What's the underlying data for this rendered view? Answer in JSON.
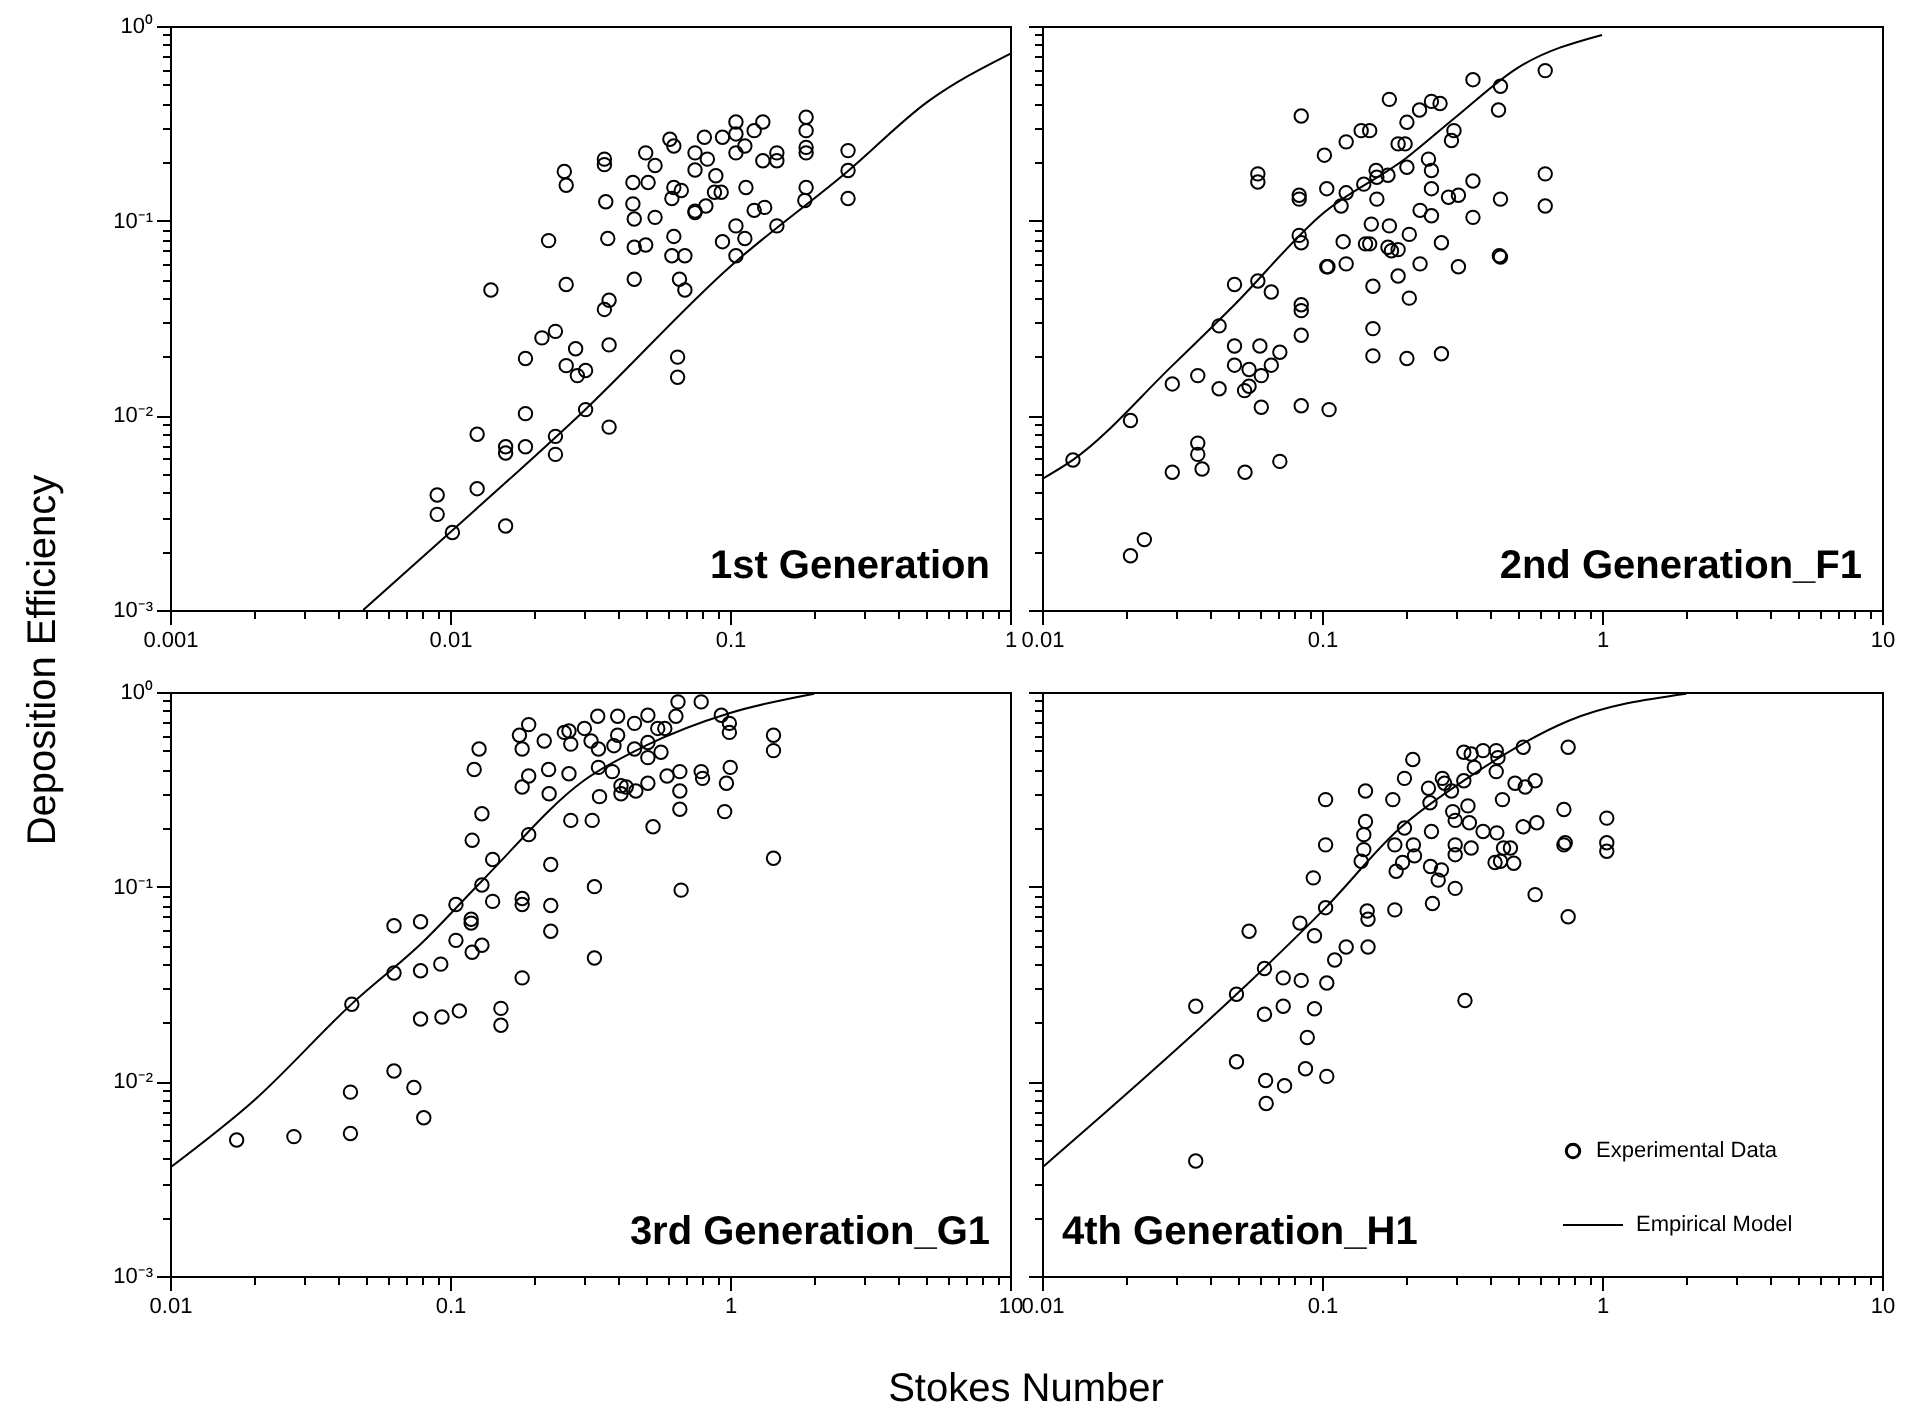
{
  "chart_data": [
    {
      "type": "scatter",
      "log": "xy",
      "xlim": [
        0.001,
        1
      ],
      "ylim": [
        0.001,
        1
      ],
      "ylabel": "Deposition Efficiency",
      "xticks": [
        0.001,
        {
          "value": 0.002,
          "label": null
        },
        {
          "value": 0.003,
          "label": null
        },
        {
          "value": 0.004,
          "label": null
        },
        {
          "value": 0.005,
          "label": null
        },
        {
          "value": 0.006,
          "label": null
        },
        {
          "value": 0.007,
          "label": null
        },
        {
          "value": 0.008,
          "label": null
        },
        {
          "value": 0.009,
          "label": null
        },
        0.01,
        {
          "value": 0.02,
          "label": null
        },
        {
          "value": 0.03,
          "label": null
        },
        {
          "value": 0.04,
          "label": null
        },
        {
          "value": 0.05,
          "label": null
        },
        {
          "value": 0.06,
          "label": null
        },
        {
          "value": 0.07,
          "label": null
        },
        {
          "value": 0.08,
          "label": null
        },
        {
          "value": 0.09,
          "label": null
        },
        0.1,
        {
          "value": 0.2,
          "label": null
        },
        {
          "value": 0.3,
          "label": null
        },
        {
          "value": 0.4,
          "label": null
        },
        {
          "value": 0.5,
          "label": null
        },
        {
          "value": 0.6,
          "label": null
        },
        {
          "value": 0.7,
          "label": null
        },
        {
          "value": 0.8,
          "label": null
        },
        {
          "value": 0.9,
          "label": null
        },
        1
      ],
      "yticks": [
        {
          "value": 0.001,
          "label": "10⁻³"
        },
        {
          "value": 0.002,
          "label": null
        },
        {
          "value": 0.003,
          "label": null
        },
        {
          "value": 0.004,
          "label": null
        },
        {
          "value": 0.005,
          "label": null
        },
        {
          "value": 0.006,
          "label": null
        },
        {
          "value": 0.007,
          "label": null
        },
        {
          "value": 0.008,
          "label": null
        },
        {
          "value": 0.009,
          "label": null
        },
        {
          "value": 0.01,
          "label": "10⁻²"
        },
        {
          "value": 0.02,
          "label": null
        },
        {
          "value": 0.03,
          "label": null
        },
        {
          "value": 0.04,
          "label": null
        },
        {
          "value": 0.05,
          "label": null
        },
        {
          "value": 0.06,
          "label": null
        },
        {
          "value": 0.07,
          "label": null
        },
        {
          "value": 0.08,
          "label": null
        },
        {
          "value": 0.09,
          "label": null
        },
        {
          "value": 0.1,
          "label": "10⁻¹"
        },
        {
          "value": 0.2,
          "label": null
        },
        {
          "value": 0.3,
          "label": null
        },
        {
          "value": 0.4,
          "label": null
        },
        {
          "value": 0.5,
          "label": null
        },
        {
          "value": 0.6,
          "label": null
        },
        {
          "value": 0.7,
          "label": null
        },
        {
          "value": 0.8,
          "label": null
        },
        {
          "value": 0.9,
          "label": null
        },
        {
          "value": 1,
          "label": "10⁰"
        }
      ],
      "annotations": [
        "1st Generation"
      ],
      "series": [
        {
          "type": "scatter",
          "marker": "circle",
          "color": "#000000",
          "x": [
            0.009,
            0.009,
            0.0102,
            0.0125,
            0.0125,
            0.014,
            0.0158,
            0.0158,
            0.0158,
            0.0186,
            0.0186,
            0.0186,
            0.0213,
            0.0225,
            0.0238,
            0.0238,
            0.0238,
            0.0256,
            0.026,
            0.026,
            0.026,
            0.0281,
            0.0285,
            0.0305,
            0.0305,
            0.0356,
            0.0356,
            0.036,
            0.0366,
            0.0356,
            0.037,
            0.037,
            0.037,
            0.045,
            0.045,
            0.0455,
            0.0455,
            0.0455,
            0.05,
            0.051,
            0.05,
            0.054,
            0.054,
            0.061,
            0.063,
            0.063,
            0.062,
            0.063,
            0.062,
            0.067,
            0.069,
            0.066,
            0.069,
            0.075,
            0.075,
            0.075,
            0.075,
            0.081,
            0.083,
            0.082,
            0.088,
            0.089,
            0.093,
            0.094,
            0.094,
            0.105,
            0.105,
            0.105,
            0.105,
            0.105,
            0.113,
            0.114,
            0.113,
            0.122,
            0.122,
            0.131,
            0.131,
            0.133,
            0.147,
            0.147,
            0.147,
            0.187,
            0.187,
            0.187,
            0.187,
            0.187,
            0.185,
            0.264,
            0.264,
            0.264,
            0.065,
            0.065
          ],
          "values": [
            0.0039,
            0.0031,
            0.0025,
            0.008,
            0.0042,
            0.044,
            0.0027,
            0.0069,
            0.0064,
            0.0069,
            0.0102,
            0.0196,
            0.025,
            0.079,
            0.027,
            0.0078,
            0.0063,
            0.179,
            0.152,
            0.047,
            0.018,
            0.022,
            0.016,
            0.017,
            0.0107,
            0.207,
            0.194,
            0.125,
            0.081,
            0.035,
            0.039,
            0.023,
            0.0087,
            0.157,
            0.122,
            0.102,
            0.073,
            0.05,
            0.223,
            0.157,
            0.075,
            0.192,
            0.104,
            0.262,
            0.242,
            0.148,
            0.13,
            0.083,
            0.066,
            0.143,
            0.066,
            0.05,
            0.044,
            0.223,
            0.182,
            0.11,
            0.112,
            0.268,
            0.207,
            0.119,
            0.14,
            0.17,
            0.14,
            0.268,
            0.078,
            0.321,
            0.223,
            0.279,
            0.094,
            0.066,
            0.242,
            0.148,
            0.081,
            0.29,
            0.113,
            0.321,
            0.203,
            0.117,
            0.223,
            0.203,
            0.094,
            0.34,
            0.29,
            0.238,
            0.223,
            0.148,
            0.127,
            0.229,
            0.181,
            0.13,
            0.0199,
            0.0157
          ]
        },
        {
          "type": "line",
          "marker": "none",
          "line_style": "solid",
          "color": "#000000",
          "x": [
            0.0049,
            0.01,
            0.03,
            0.1,
            0.264,
            0.51,
            1
          ],
          "values": [
            0.001,
            0.0025,
            0.0105,
            0.058,
            0.18,
            0.41,
            0.72
          ]
        }
      ]
    },
    {
      "type": "scatter",
      "log": "xy",
      "xlim": [
        0.01,
        10
      ],
      "ylim": [
        0.001,
        1
      ],
      "tick_labels": "x",
      "xticks": [
        0.01,
        {
          "value": 0.02,
          "label": null
        },
        {
          "value": 0.03,
          "label": null
        },
        {
          "value": 0.04,
          "label": null
        },
        {
          "value": 0.05,
          "label": null
        },
        {
          "value": 0.06,
          "label": null
        },
        {
          "value": 0.07,
          "label": null
        },
        {
          "value": 0.08,
          "label": null
        },
        {
          "value": 0.09,
          "label": null
        },
        0.1,
        {
          "value": 0.2,
          "label": null
        },
        {
          "value": 0.3,
          "label": null
        },
        {
          "value": 0.4,
          "label": null
        },
        {
          "value": 0.5,
          "label": null
        },
        {
          "value": 0.6,
          "label": null
        },
        {
          "value": 0.7,
          "label": null
        },
        {
          "value": 0.8,
          "label": null
        },
        {
          "value": 0.9,
          "label": null
        },
        1,
        {
          "value": 2,
          "label": null
        },
        {
          "value": 3,
          "label": null
        },
        {
          "value": 4,
          "label": null
        },
        {
          "value": 5,
          "label": null
        },
        {
          "value": 6,
          "label": null
        },
        {
          "value": 7,
          "label": null
        },
        {
          "value": 8,
          "label": null
        },
        {
          "value": 9,
          "label": null
        },
        10
      ],
      "yticks": [
        {
          "value": 0.001,
          "label": null
        },
        {
          "value": 0.002,
          "label": null
        },
        {
          "value": 0.003,
          "label": null
        },
        {
          "value": 0.004,
          "label": null
        },
        {
          "value": 0.005,
          "label": null
        },
        {
          "value": 0.006,
          "label": null
        },
        {
          "value": 0.007,
          "label": null
        },
        {
          "value": 0.008,
          "label": null
        },
        {
          "value": 0.009,
          "label": null
        },
        {
          "value": 0.01,
          "label": null
        },
        {
          "value": 0.02,
          "label": null
        },
        {
          "value": 0.03,
          "label": null
        },
        {
          "value": 0.04,
          "label": null
        },
        {
          "value": 0.05,
          "label": null
        },
        {
          "value": 0.06,
          "label": null
        },
        {
          "value": 0.07,
          "label": null
        },
        {
          "value": 0.08,
          "label": null
        },
        {
          "value": 0.09,
          "label": null
        },
        {
          "value": 0.1,
          "label": null
        },
        {
          "value": 0.2,
          "label": null
        },
        {
          "value": 0.3,
          "label": null
        },
        {
          "value": 0.4,
          "label": null
        },
        {
          "value": 0.5,
          "label": null
        },
        {
          "value": 0.6,
          "label": null
        },
        {
          "value": 0.7,
          "label": null
        },
        {
          "value": 0.8,
          "label": null
        },
        {
          "value": 0.9,
          "label": null
        },
        {
          "value": 1,
          "label": null
        }
      ],
      "annotations": [
        "2nd Generation_F1"
      ],
      "series": [
        {
          "type": "scatter",
          "marker": "circle",
          "color": "#000000",
          "x": [
            0.0129,
            0.0207,
            0.0207,
            0.0232,
            0.0292,
            0.0292,
            0.036,
            0.036,
            0.036,
            0.0373,
            0.0429,
            0.0429,
            0.0487,
            0.0487,
            0.0487,
            0.0529,
            0.0549,
            0.0549,
            0.059,
            0.059,
            0.059,
            0.06,
            0.0607,
            0.0607,
            0.0659,
            0.0659,
            0.0707,
            0.0707,
            0.0531,
            0.0843,
            0.0829,
            0.0829,
            0.0829,
            0.0843,
            0.0843,
            0.0843,
            0.0843,
            0.0843,
            0.102,
            0.104,
            0.104,
            0.105,
            0.106,
            0.117,
            0.119,
            0.122,
            0.122,
            0.122,
            0.138,
            0.148,
            0.141,
            0.143,
            0.148,
            0.15,
            0.152,
            0.152,
            0.152,
            0.156,
            0.157,
            0.157,
            0.172,
            0.174,
            0.174,
            0.172,
            0.177,
            0.187,
            0.187,
            0.187,
            0.198,
            0.201,
            0.201,
            0.205,
            0.205,
            0.201,
            0.223,
            0.224,
            0.224,
            0.24,
            0.246,
            0.246,
            0.246,
            0.246,
            0.264,
            0.267,
            0.283,
            0.29,
            0.296,
            0.307,
            0.307,
            0.267,
            0.346,
            0.346,
            0.346,
            0.427,
            0.434,
            0.434,
            0.43,
            0.434,
            0.627,
            0.627,
            0.627
          ],
          "values": [
            0.0059,
            0.0094,
            0.0019,
            0.0023,
            0.0145,
            0.0051,
            0.016,
            0.0072,
            0.0063,
            0.0053,
            0.0288,
            0.0137,
            0.047,
            0.0227,
            0.0181,
            0.0134,
            0.0172,
            0.0141,
            0.049,
            0.174,
            0.158,
            0.0227,
            0.016,
            0.011,
            0.043,
            0.0181,
            0.0211,
            0.0058,
            0.0051,
            0.345,
            0.135,
            0.129,
            0.084,
            0.077,
            0.037,
            0.0345,
            0.0258,
            0.0112,
            0.217,
            0.146,
            0.058,
            0.058,
            0.0107,
            0.119,
            0.078,
            0.254,
            0.139,
            0.06,
            0.29,
            0.29,
            0.154,
            0.076,
            0.076,
            0.096,
            0.046,
            0.0279,
            0.0202,
            0.181,
            0.129,
            0.167,
            0.171,
            0.42,
            0.094,
            0.073,
            0.07,
            0.071,
            0.248,
            0.052,
            0.248,
            0.32,
            0.188,
            0.085,
            0.04,
            0.0196,
            0.37,
            0.113,
            0.06,
            0.207,
            0.41,
            0.181,
            0.146,
            0.106,
            0.4,
            0.077,
            0.132,
            0.258,
            0.29,
            0.135,
            0.058,
            0.0207,
            0.53,
            0.16,
            0.104,
            0.37,
            0.49,
            0.129,
            0.066,
            0.065,
            0.59,
            0.174,
            0.119
          ]
        },
        {
          "type": "line",
          "marker": "none",
          "line_style": "solid",
          "color": "#000000",
          "x": [
            0.01,
            0.0129,
            0.0292,
            0.0487,
            0.1,
            0.2,
            0.3,
            0.5,
            1
          ],
          "values": [
            0.0047,
            0.0059,
            0.018,
            0.037,
            0.108,
            0.21,
            0.34,
            0.61,
            0.9
          ]
        }
      ]
    },
    {
      "type": "scatter",
      "log": "xy",
      "xlim": [
        0.01,
        10
      ],
      "ylim": [
        0.001,
        1
      ],
      "xlabel": "Stokes Number",
      "xticks": [
        0.01,
        {
          "value": 0.02,
          "label": null
        },
        {
          "value": 0.03,
          "label": null
        },
        {
          "value": 0.04,
          "label": null
        },
        {
          "value": 0.05,
          "label": null
        },
        {
          "value": 0.06,
          "label": null
        },
        {
          "value": 0.07,
          "label": null
        },
        {
          "value": 0.08,
          "label": null
        },
        {
          "value": 0.09,
          "label": null
        },
        0.1,
        {
          "value": 0.2,
          "label": null
        },
        {
          "value": 0.3,
          "label": null
        },
        {
          "value": 0.4,
          "label": null
        },
        {
          "value": 0.5,
          "label": null
        },
        {
          "value": 0.6,
          "label": null
        },
        {
          "value": 0.7,
          "label": null
        },
        {
          "value": 0.8,
          "label": null
        },
        {
          "value": 0.9,
          "label": null
        },
        1,
        {
          "value": 2,
          "label": null
        },
        {
          "value": 3,
          "label": null
        },
        {
          "value": 4,
          "label": null
        },
        {
          "value": 5,
          "label": null
        },
        {
          "value": 6,
          "label": null
        },
        {
          "value": 7,
          "label": null
        },
        {
          "value": 8,
          "label": null
        },
        {
          "value": 9,
          "label": null
        },
        10
      ],
      "yticks": [
        {
          "value": 0.001,
          "label": "10⁻³"
        },
        {
          "value": 0.002,
          "label": null
        },
        {
          "value": 0.003,
          "label": null
        },
        {
          "value": 0.004,
          "label": null
        },
        {
          "value": 0.005,
          "label": null
        },
        {
          "value": 0.006,
          "label": null
        },
        {
          "value": 0.007,
          "label": null
        },
        {
          "value": 0.008,
          "label": null
        },
        {
          "value": 0.009,
          "label": null
        },
        {
          "value": 0.01,
          "label": "10⁻²"
        },
        {
          "value": 0.02,
          "label": null
        },
        {
          "value": 0.03,
          "label": null
        },
        {
          "value": 0.04,
          "label": null
        },
        {
          "value": 0.05,
          "label": null
        },
        {
          "value": 0.06,
          "label": null
        },
        {
          "value": 0.07,
          "label": null
        },
        {
          "value": 0.08,
          "label": null
        },
        {
          "value": 0.09,
          "label": null
        },
        {
          "value": 0.1,
          "label": "10⁻¹"
        },
        {
          "value": 0.2,
          "label": null
        },
        {
          "value": 0.3,
          "label": null
        },
        {
          "value": 0.4,
          "label": null
        },
        {
          "value": 0.5,
          "label": null
        },
        {
          "value": 0.6,
          "label": null
        },
        {
          "value": 0.7,
          "label": null
        },
        {
          "value": 0.8,
          "label": null
        },
        {
          "value": 0.9,
          "label": null
        },
        {
          "value": 1,
          "label": "10⁰"
        }
      ],
      "annotations": [
        "3rd Generation_G1"
      ],
      "series": [
        {
          "type": "scatter",
          "marker": "circle",
          "color": "#000000",
          "x": [
            0.0173,
            0.0277,
            0.0441,
            0.0441,
            0.0446,
            0.0631,
            0.0631,
            0.0631,
            0.0743,
            0.0785,
            0.0785,
            0.0785,
            0.0806,
            0.0927,
            0.0936,
            0.108,
            0.105,
            0.105,
            0.119,
            0.119,
            0.12,
            0.12,
            0.122,
            0.127,
            0.13,
            0.13,
            0.13,
            0.142,
            0.142,
            0.152,
            0.152,
            0.177,
            0.181,
            0.181,
            0.181,
            0.181,
            0.181,
            0.191,
            0.191,
            0.191,
            0.217,
            0.225,
            0.226,
            0.229,
            0.229,
            0.229,
            0.256,
            0.266,
            0.27,
            0.266,
            0.27,
            0.302,
            0.319,
            0.322,
            0.328,
            0.328,
            0.337,
            0.339,
            0.339,
            0.342,
            0.38,
            0.385,
            0.397,
            0.397,
            0.408,
            0.408,
            0.426,
            0.456,
            0.456,
            0.461,
            0.509,
            0.509,
            0.509,
            0.509,
            0.531,
            0.552,
            0.567,
            0.585,
            0.596,
            0.641,
            0.652,
            0.662,
            0.662,
            0.662,
            0.669,
            0.789,
            0.789,
            0.798,
            0.931,
            0.957,
            0.971,
            0.995,
            0.995,
            1.002,
            1.43,
            1.43,
            1.43
          ],
          "values": [
            0.005,
            0.0052,
            0.0088,
            0.0054,
            0.0249,
            0.063,
            0.036,
            0.0113,
            0.0093,
            0.066,
            0.037,
            0.0209,
            0.0065,
            0.04,
            0.0214,
            0.023,
            0.081,
            0.053,
            0.068,
            0.065,
            0.046,
            0.173,
            0.4,
            0.51,
            0.237,
            0.102,
            0.05,
            0.138,
            0.084,
            0.0237,
            0.0194,
            0.6,
            0.51,
            0.325,
            0.087,
            0.081,
            0.034,
            0.68,
            0.37,
            0.185,
            0.56,
            0.4,
            0.3,
            0.13,
            0.08,
            0.059,
            0.62,
            0.63,
            0.54,
            0.38,
            0.219,
            0.65,
            0.56,
            0.219,
            0.1,
            0.043,
            0.75,
            0.51,
            0.41,
            0.29,
            0.39,
            0.53,
            0.6,
            0.75,
            0.33,
            0.3,
            0.325,
            0.69,
            0.51,
            0.31,
            0.76,
            0.55,
            0.46,
            0.34,
            0.203,
            0.65,
            0.49,
            0.65,
            0.37,
            0.75,
            0.89,
            0.39,
            0.31,
            0.25,
            0.096,
            0.89,
            0.39,
            0.36,
            0.76,
            0.243,
            0.34,
            0.69,
            0.62,
            0.41,
            0.6,
            0.5,
            0.14
          ]
        },
        {
          "type": "line",
          "marker": "none",
          "line_style": "solid",
          "color": "#000000",
          "x": [
            0.01,
            0.02,
            0.0446,
            0.08,
            0.13,
            0.3,
            0.5,
            1,
            2
          ],
          "values": [
            0.0036,
            0.008,
            0.025,
            0.052,
            0.107,
            0.35,
            0.53,
            0.78,
            0.98
          ]
        }
      ]
    },
    {
      "type": "scatter",
      "log": "xy",
      "xlim": [
        0.01,
        10
      ],
      "ylim": [
        0.001,
        1
      ],
      "tick_labels": "x",
      "legend": "bottom right",
      "xticks": [
        0.01,
        {
          "value": 0.02,
          "label": null
        },
        {
          "value": 0.03,
          "label": null
        },
        {
          "value": 0.04,
          "label": null
        },
        {
          "value": 0.05,
          "label": null
        },
        {
          "value": 0.06,
          "label": null
        },
        {
          "value": 0.07,
          "label": null
        },
        {
          "value": 0.08,
          "label": null
        },
        {
          "value": 0.09,
          "label": null
        },
        0.1,
        {
          "value": 0.2,
          "label": null
        },
        {
          "value": 0.3,
          "label": null
        },
        {
          "value": 0.4,
          "label": null
        },
        {
          "value": 0.5,
          "label": null
        },
        {
          "value": 0.6,
          "label": null
        },
        {
          "value": 0.7,
          "label": null
        },
        {
          "value": 0.8,
          "label": null
        },
        {
          "value": 0.9,
          "label": null
        },
        1,
        {
          "value": 2,
          "label": null
        },
        {
          "value": 3,
          "label": null
        },
        {
          "value": 4,
          "label": null
        },
        {
          "value": 5,
          "label": null
        },
        {
          "value": 6,
          "label": null
        },
        {
          "value": 7,
          "label": null
        },
        {
          "value": 8,
          "label": null
        },
        {
          "value": 9,
          "label": null
        },
        10
      ],
      "yticks": [
        {
          "value": 0.001,
          "label": null
        },
        {
          "value": 0.002,
          "label": null
        },
        {
          "value": 0.003,
          "label": null
        },
        {
          "value": 0.004,
          "label": null
        },
        {
          "value": 0.005,
          "label": null
        },
        {
          "value": 0.006,
          "label": null
        },
        {
          "value": 0.007,
          "label": null
        },
        {
          "value": 0.008,
          "label": null
        },
        {
          "value": 0.009,
          "label": null
        },
        {
          "value": 0.01,
          "label": null
        },
        {
          "value": 0.02,
          "label": null
        },
        {
          "value": 0.03,
          "label": null
        },
        {
          "value": 0.04,
          "label": null
        },
        {
          "value": 0.05,
          "label": null
        },
        {
          "value": 0.06,
          "label": null
        },
        {
          "value": 0.07,
          "label": null
        },
        {
          "value": 0.08,
          "label": null
        },
        {
          "value": 0.09,
          "label": null
        },
        {
          "value": 0.1,
          "label": null
        },
        {
          "value": 0.2,
          "label": null
        },
        {
          "value": 0.3,
          "label": null
        },
        {
          "value": 0.4,
          "label": null
        },
        {
          "value": 0.5,
          "label": null
        },
        {
          "value": 0.6,
          "label": null
        },
        {
          "value": 0.7,
          "label": null
        },
        {
          "value": 0.8,
          "label": null
        },
        {
          "value": 0.9,
          "label": null
        },
        {
          "value": 1,
          "label": null
        }
      ],
      "annotations": [
        "4th Generation_H1"
      ],
      "series": [
        {
          "type": "scatter",
          "name": "Experimental Data",
          "marker": "circle",
          "color": "#000000",
          "x": [
            0.0354,
            0.0354,
            0.0495,
            0.0495,
            0.0549,
            0.0623,
            0.0623,
            0.0629,
            0.0632,
            0.0727,
            0.0727,
            0.0735,
            0.0834,
            0.0843,
            0.0873,
            0.0886,
            0.0931,
            0.094,
            0.094,
            0.103,
            0.103,
            0.103,
            0.104,
            0.104,
            0.111,
            0.122,
            0.138,
            0.141,
            0.141,
            0.143,
            0.143,
            0.145,
            0.146,
            0.146,
            0.179,
            0.182,
            0.182,
            0.184,
            0.194,
            0.197,
            0.197,
            0.211,
            0.212,
            0.214,
            0.24,
            0.243,
            0.244,
            0.246,
            0.248,
            0.26,
            0.267,
            0.269,
            0.274,
            0.29,
            0.293,
            0.299,
            0.299,
            0.299,
            0.299,
            0.321,
            0.321,
            0.324,
            0.332,
            0.336,
            0.341,
            0.341,
            0.35,
            0.376,
            0.376,
            0.415,
            0.419,
            0.419,
            0.425,
            0.421,
            0.434,
            0.441,
            0.445,
            0.471,
            0.484,
            0.489,
            0.523,
            0.523,
            0.532,
            0.577,
            0.577,
            0.585,
            0.731,
            0.731,
            0.739,
            0.757,
            0.757,
            1.04,
            1.04,
            1.04
          ],
          "values": [
            0.0243,
            0.0039,
            0.028,
            0.0126,
            0.059,
            0.038,
            0.0221,
            0.0101,
            0.0077,
            0.034,
            0.0243,
            0.0095,
            0.065,
            0.033,
            0.0116,
            0.0168,
            0.111,
            0.056,
            0.0236,
            0.28,
            0.164,
            0.078,
            0.032,
            0.0106,
            0.042,
            0.049,
            0.135,
            0.155,
            0.185,
            0.31,
            0.216,
            0.075,
            0.068,
            0.049,
            0.28,
            0.164,
            0.076,
            0.12,
            0.133,
            0.2,
            0.36,
            0.45,
            0.164,
            0.144,
            0.32,
            0.27,
            0.127,
            0.192,
            0.082,
            0.108,
            0.122,
            0.36,
            0.34,
            0.31,
            0.243,
            0.219,
            0.164,
            0.146,
            0.098,
            0.49,
            0.35,
            0.026,
            0.26,
            0.213,
            0.48,
            0.158,
            0.41,
            0.5,
            0.192,
            0.133,
            0.5,
            0.39,
            0.46,
            0.189,
            0.135,
            0.28,
            0.158,
            0.158,
            0.132,
            0.34,
            0.52,
            0.203,
            0.325,
            0.091,
            0.35,
            0.213,
            0.164,
            0.249,
            0.168,
            0.52,
            0.07,
            0.225,
            0.168,
            0.152
          ]
        },
        {
          "type": "line",
          "name": "Empirical Model",
          "marker": "none",
          "line_style": "solid",
          "color": "#000000",
          "x": [
            0.01,
            0.02,
            0.0495,
            0.103,
            0.19,
            0.33,
            0.757,
            2
          ],
          "values": [
            0.0036,
            0.0086,
            0.028,
            0.078,
            0.2,
            0.36,
            0.71,
            0.98
          ]
        }
      ]
    }
  ]
}
